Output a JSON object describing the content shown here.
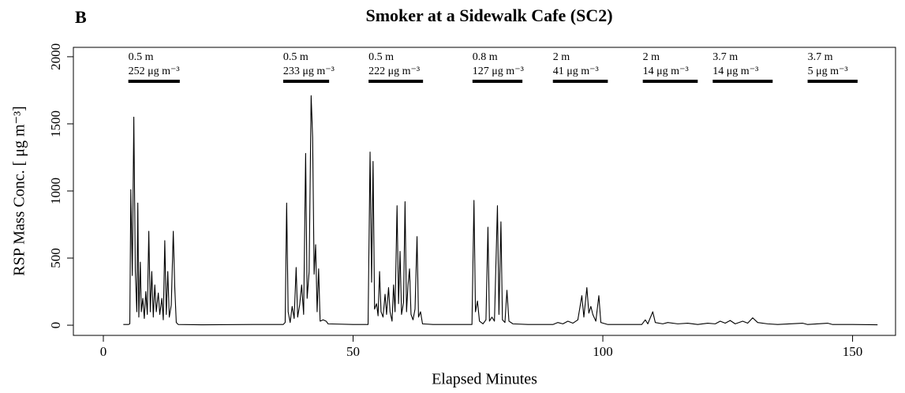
{
  "chart_data": {
    "type": "line",
    "panel": "B",
    "title": "Smoker at a Sidewalk Cafe (SC2)",
    "x_label": "Elapsed Minutes",
    "y_label": "RSP Mass Conc. [ μg m⁻³]",
    "xlim": [
      -6,
      158.6
    ],
    "ylim": [
      -76,
      2070
    ],
    "xticks": [
      0,
      50,
      100,
      150
    ],
    "yticks": [
      0,
      500,
      1000,
      1500,
      2000
    ],
    "annotations": [
      {
        "distance": "0.5 m",
        "concentration": "252 μg m⁻³",
        "start": 5,
        "end": 15.3
      },
      {
        "distance": "0.5 m",
        "concentration": "233 μg m⁻³",
        "start": 36,
        "end": 45.2
      },
      {
        "distance": "0.5 m",
        "concentration": "222 μg m⁻³",
        "start": 53.1,
        "end": 64
      },
      {
        "distance": "0.8 m",
        "concentration": "127 μg m⁻³",
        "start": 73.9,
        "end": 83.9
      },
      {
        "distance": "2 m",
        "concentration": "41 μg m⁻³",
        "start": 90,
        "end": 101
      },
      {
        "distance": "2 m",
        "concentration": "14 μg m⁻³",
        "start": 108,
        "end": 119
      },
      {
        "distance": "3.7 m",
        "concentration": "14 μg m⁻³",
        "start": 122,
        "end": 134
      },
      {
        "distance": "3.7 m",
        "concentration": "5 μg m⁻³",
        "start": 141,
        "end": 151
      }
    ],
    "x": [
      4,
      5,
      5.3,
      5.5,
      5.8,
      6.1,
      6.4,
      6.7,
      6.9,
      7.1,
      7.4,
      7.6,
      7.9,
      8.2,
      8.5,
      8.8,
      9.1,
      9.4,
      9.7,
      10,
      10.3,
      10.6,
      11,
      11.3,
      11.7,
      12,
      12.3,
      12.6,
      12.9,
      13.2,
      13.6,
      14,
      14.3,
      14.6,
      15,
      20,
      30,
      36,
      36.4,
      36.7,
      37,
      37.4,
      37.8,
      38.2,
      38.6,
      38.9,
      39.3,
      39.7,
      40.1,
      40.5,
      40.8,
      41.2,
      41.6,
      41.9,
      42.2,
      42.5,
      42.8,
      43.1,
      43.4,
      44,
      44.6,
      45,
      50,
      53,
      53.4,
      53.7,
      54,
      54.3,
      54.7,
      55,
      55.3,
      55.6,
      56,
      56.4,
      56.7,
      57.1,
      57.4,
      57.8,
      58.1,
      58.4,
      58.8,
      59.1,
      59.4,
      59.7,
      60.1,
      60.4,
      60.7,
      61,
      61.3,
      61.6,
      62,
      62.4,
      62.8,
      63.1,
      63.5,
      63.9,
      66,
      73.8,
      74.2,
      74.5,
      74.9,
      75.3,
      76,
      76.6,
      77,
      77.3,
      77.8,
      78.3,
      78.9,
      79.2,
      79.6,
      79.9,
      80.4,
      80.8,
      81.2,
      82,
      85,
      90,
      91,
      92,
      93,
      94,
      95,
      95.8,
      96.2,
      96.8,
      97.2,
      97.6,
      98,
      98.6,
      99.2,
      99.6,
      101,
      107.8,
      108.5,
      109,
      110,
      110.5,
      112,
      113,
      115,
      117,
      119,
      121,
      122.5,
      123.5,
      124.5,
      125.5,
      126.5,
      128,
      129,
      130,
      131,
      133,
      135,
      140,
      141,
      145,
      146,
      150,
      155
    ],
    "series": [
      {
        "name": "RSP",
        "color": "#000000",
        "values": [
          5,
          5,
          10,
          1010,
          370,
          1550,
          400,
          100,
          910,
          60,
          470,
          100,
          200,
          50,
          250,
          80,
          700,
          100,
          400,
          60,
          300,
          100,
          240,
          80,
          200,
          40,
          630,
          80,
          400,
          60,
          150,
          700,
          280,
          20,
          5,
          3,
          5,
          5,
          20,
          910,
          100,
          20,
          140,
          50,
          430,
          60,
          150,
          300,
          80,
          1280,
          200,
          400,
          1710,
          1400,
          380,
          600,
          100,
          420,
          30,
          40,
          30,
          10,
          5,
          5,
          1290,
          320,
          1220,
          120,
          160,
          70,
          400,
          100,
          60,
          230,
          80,
          280,
          100,
          30,
          300,
          100,
          890,
          160,
          550,
          80,
          170,
          920,
          100,
          300,
          420,
          80,
          40,
          120,
          660,
          60,
          100,
          10,
          5,
          5,
          930,
          100,
          180,
          30,
          10,
          40,
          730,
          30,
          60,
          30,
          890,
          80,
          770,
          40,
          20,
          260,
          30,
          10,
          5,
          5,
          20,
          10,
          30,
          15,
          40,
          220,
          60,
          280,
          90,
          140,
          80,
          30,
          220,
          20,
          5,
          5,
          40,
          10,
          100,
          20,
          10,
          20,
          10,
          15,
          5,
          15,
          10,
          30,
          15,
          35,
          10,
          30,
          15,
          55,
          20,
          10,
          5,
          15,
          5,
          15,
          5,
          5,
          3
        ]
      }
    ]
  }
}
